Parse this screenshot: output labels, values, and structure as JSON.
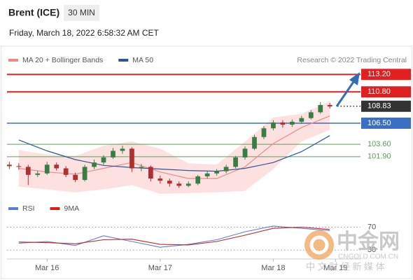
{
  "header": {
    "title": "Brent (ICE)",
    "timeframe": "30 MIN",
    "datetime": "Friday, March 18, 2022 6:58:32 AM CET",
    "credit": "Research © 2022 Trading Central"
  },
  "watermark": {
    "brand": "中金网",
    "domain": "CNGOLD.COM.CN",
    "slogan": "中 文 财 经 新 媒 体"
  },
  "chart_data": [
    {
      "type": "candlestick",
      "x": [
        -8,
        -6,
        -4,
        -2,
        0,
        2,
        4,
        6,
        8,
        10,
        12,
        14,
        16,
        18,
        20,
        22,
        24,
        26,
        28,
        30,
        32,
        34,
        36,
        38,
        40,
        42,
        44,
        46,
        48,
        50,
        52,
        54,
        56,
        58,
        60
      ],
      "open": [
        100.8,
        100.6,
        100.5,
        99.4,
        99.6,
        100.8,
        100.3,
        99.4,
        98.7,
        100.5,
        101.1,
        101.8,
        102.7,
        103.0,
        100.3,
        100.5,
        98.9,
        98.6,
        98.2,
        97.9,
        98.2,
        99.2,
        99.6,
        99.9,
        100.5,
        101.8,
        103.0,
        104.6,
        105.8,
        106.6,
        106.3,
        106.7,
        107.2,
        108.0,
        109.0
      ],
      "high": [
        101.2,
        101.0,
        100.8,
        100.0,
        101.2,
        101.1,
        100.6,
        99.7,
        100.8,
        101.5,
        102.1,
        103.1,
        103.4,
        103.2,
        100.9,
        100.7,
        99.3,
        98.9,
        98.5,
        98.5,
        99.4,
        99.9,
        100.2,
        100.8,
        102.0,
        103.3,
        104.9,
        106.1,
        106.9,
        106.9,
        107.0,
        107.5,
        108.3,
        109.4,
        109.3
      ],
      "low": [
        100.2,
        100.1,
        98.0,
        99.1,
        99.4,
        100.0,
        99.1,
        98.4,
        98.5,
        100.2,
        100.8,
        101.6,
        102.3,
        99.8,
        99.9,
        98.5,
        98.2,
        97.8,
        97.6,
        97.7,
        98.0,
        98.9,
        99.3,
        99.6,
        100.3,
        101.5,
        102.8,
        104.3,
        105.5,
        105.9,
        106.0,
        106.4,
        107.0,
        107.8,
        108.5
      ],
      "close": [
        100.6,
        100.5,
        99.4,
        99.6,
        100.8,
        100.3,
        99.4,
        98.7,
        100.5,
        101.1,
        101.8,
        102.7,
        103.0,
        100.3,
        100.5,
        98.9,
        98.6,
        98.2,
        97.9,
        98.2,
        99.2,
        99.6,
        99.9,
        100.5,
        101.8,
        103.0,
        104.6,
        105.8,
        106.6,
        106.3,
        106.7,
        107.2,
        108.0,
        109.0,
        108.8
      ],
      "up_color": "#3a7d44",
      "down_color": "#b03030",
      "overlays": {
        "x": [
          -6,
          0,
          6,
          12,
          18,
          24,
          30,
          36,
          42,
          48,
          54,
          60
        ],
        "series": [
          {
            "name": "MA 20 + Bollinger Bands",
            "color": "#f08a8a",
            "band_color": "#fde1e1",
            "values": [
              100.3,
              99.8,
              99.5,
              100.3,
              101.1,
              99.8,
              98.9,
              98.9,
              100.5,
              103.7,
              105.9,
              107.5
            ],
            "upper": [
              102.8,
              102.2,
              102.0,
              103.4,
              104.0,
              103.0,
              101.0,
              100.8,
              104.0,
              107.3,
              107.8,
              109.5
            ],
            "lower": [
              97.8,
              97.4,
              97.0,
              97.4,
              98.0,
              96.8,
              96.9,
              97.0,
              97.2,
              100.2,
              104.0,
              105.6
            ]
          },
          {
            "name": "MA 50",
            "color": "#2f5597",
            "values": [
              104.2,
              102.7,
              101.5,
              100.7,
              100.4,
              100.2,
              100.0,
              99.9,
              100.3,
              101.1,
              102.6,
              104.8
            ]
          }
        ]
      },
      "levels": [
        {
          "value": 113.2,
          "label": "113.20",
          "color": "#e02020",
          "line_style": "solid",
          "label_style": "box"
        },
        {
          "value": 110.8,
          "label": "110.80",
          "color": "#e02020",
          "line_style": "solid",
          "label_style": "box"
        },
        {
          "value": 108.83,
          "color": "#333333",
          "line_style": "dotted",
          "label_style": "box"
        },
        {
          "value": 106.5,
          "label": "106.50",
          "color": "#3a6fc4",
          "line_style": "solid",
          "label_style": "box"
        },
        {
          "value": 103.6,
          "label": "103.60",
          "color": "#5aa05a",
          "line_style": "thin",
          "label_style": "plain"
        },
        {
          "value": 101.9,
          "label": "101.90",
          "color": "#5aa05a",
          "line_style": "thin",
          "label_style": "plain"
        }
      ],
      "xlim": [
        -8.5,
        66.5
      ],
      "ylim": [
        96.5,
        114
      ],
      "legend": "top-left"
    },
    {
      "type": "line",
      "x": [
        -6,
        0,
        6,
        12,
        18,
        24,
        30,
        36,
        42,
        48,
        54,
        60
      ],
      "series": [
        {
          "name": "RSI",
          "color": "#5b7fd6",
          "values": [
            42,
            45,
            38,
            55,
            45,
            35,
            40,
            48,
            62,
            72,
            68,
            64
          ]
        },
        {
          "name": "9MA",
          "color": "#d02020",
          "values": [
            44,
            43,
            41,
            48,
            49,
            40,
            39,
            45,
            56,
            68,
            70,
            66
          ]
        }
      ],
      "xlim": [
        -8.5,
        66.5
      ],
      "ylim": [
        12,
        100
      ],
      "yticks": [
        70,
        30
      ],
      "xticks": [
        {
          "value": 0,
          "label": "Mar 16"
        },
        {
          "value": 24,
          "label": "Mar 17"
        },
        {
          "value": 48,
          "label": "Mar 18"
        },
        {
          "value": 61.2,
          "label": "Mar 19"
        }
      ],
      "legend": "top-left"
    }
  ]
}
